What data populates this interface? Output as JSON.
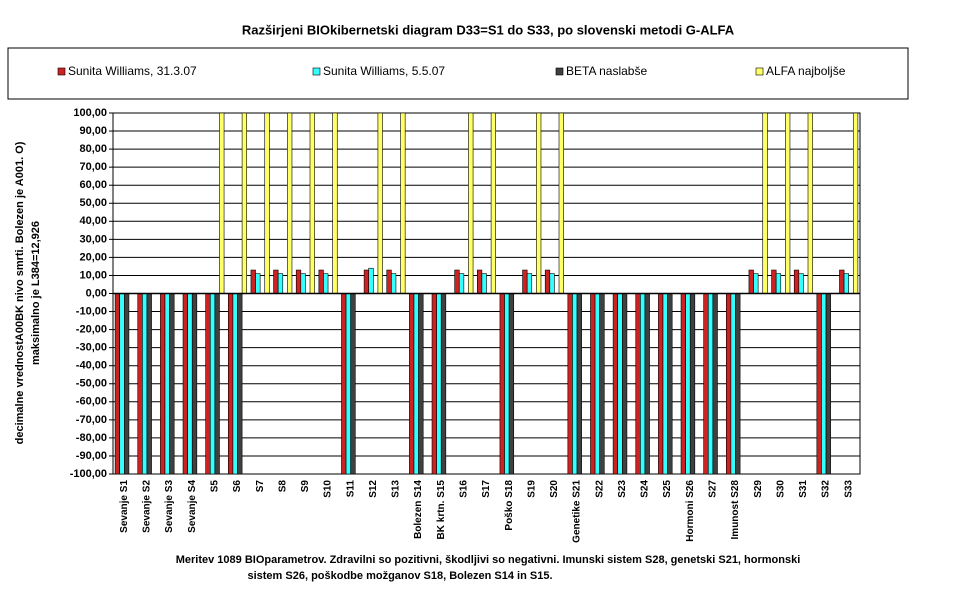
{
  "chart_data": {
    "type": "bar",
    "title": "Razširjeni BIOkibernetski diagram  D33=S1 do S33, po slovenski metodi G-ALFA",
    "y_label": [
      "decimalne vrednostA00BK nivo smrti. Bolezen je A001. O)",
      "maksimalno je L384=12,926"
    ],
    "caption": [
      "Meritev 1089 BIOparametrov. Zdravilni so pozitivni, škodljivi so negativni. Imunski sistem S28, genetski S21, hormonski",
      "sistem S26, poškodbe možganov S18, Bolezen S14 in S15."
    ],
    "categories": [
      "Sevanje S1",
      "Sevanje S2",
      "Sevanje S3",
      "Sevanje S4",
      "S5",
      "S6",
      "S7",
      "S8",
      "S9",
      "S10",
      "S11",
      "S12",
      "S13",
      "Bolezen S14",
      "BK krtn. S15",
      "S16",
      "S17",
      "Poško S18",
      "S19",
      "S20",
      "Genetike S21",
      "S22",
      "S23",
      "S24",
      "S25",
      "Hormoni S26",
      "S27",
      "Imunost S28",
      "S29",
      "S30",
      "S31",
      "S32",
      "S33"
    ],
    "series": [
      {
        "name": "Sunita Williams, 31.3.07",
        "color": "#cc2222",
        "values": [
          -100,
          -100,
          -100,
          -100,
          -100,
          -100,
          13,
          13,
          13,
          13,
          -100,
          13,
          13,
          -100,
          -100,
          13,
          13,
          -100,
          13,
          13,
          -100,
          -100,
          -100,
          -100,
          -100,
          -100,
          -100,
          -100,
          13,
          13,
          13,
          -100,
          13
        ]
      },
      {
        "name": "Sunita Williams, 5.5.07",
        "color": "#33ffff",
        "values": [
          -100,
          -100,
          -100,
          -100,
          -100,
          -100,
          11,
          11,
          11,
          11,
          -100,
          14,
          11,
          -100,
          -100,
          11,
          11,
          -100,
          11,
          11,
          -100,
          -100,
          -100,
          -100,
          -100,
          -100,
          -100,
          -100,
          11,
          11,
          11,
          -100,
          11
        ]
      },
      {
        "name": "BETA naslabše",
        "color": "#404040",
        "values": [
          -100,
          -100,
          -100,
          -100,
          -100,
          -100,
          0,
          0,
          0,
          0,
          -100,
          0,
          0,
          -100,
          -100,
          0,
          0,
          -100,
          0,
          0,
          -100,
          -100,
          -100,
          -100,
          -100,
          -100,
          -100,
          -100,
          0,
          0,
          0,
          -100,
          0
        ]
      },
      {
        "name": "ALFA najboljše",
        "color": "#ffff66",
        "values": [
          0,
          0,
          0,
          0,
          100,
          100,
          100,
          100,
          100,
          100,
          0,
          100,
          100,
          0,
          0,
          100,
          100,
          0,
          100,
          100,
          0,
          0,
          0,
          0,
          0,
          0,
          0,
          0,
          100,
          100,
          100,
          0,
          100
        ]
      }
    ],
    "ylim": [
      -100,
      100
    ],
    "yticks": [
      {
        "value": 100,
        "label": "100,00"
      },
      {
        "value": 90,
        "label": "90,00"
      },
      {
        "value": 80,
        "label": "80,00"
      },
      {
        "value": 70,
        "label": "70,00"
      },
      {
        "value": 60,
        "label": "60,00"
      },
      {
        "value": 50,
        "label": "50,00"
      },
      {
        "value": 40,
        "label": "40,00"
      },
      {
        "value": 30,
        "label": "30,00"
      },
      {
        "value": 20,
        "label": "20,00"
      },
      {
        "value": 10,
        "label": "10,00"
      },
      {
        "value": 0,
        "label": "0,00"
      },
      {
        "value": -10,
        "label": "-10,00"
      },
      {
        "value": -20,
        "label": "-20,00"
      },
      {
        "value": -30,
        "label": "-30,00"
      },
      {
        "value": -40,
        "label": "-40,00"
      },
      {
        "value": -50,
        "label": "-50,00"
      },
      {
        "value": -60,
        "label": "-60,00"
      },
      {
        "value": -70,
        "label": "-70,00"
      },
      {
        "value": -80,
        "label": "-80,00"
      },
      {
        "value": -90,
        "label": "-90,00"
      },
      {
        "value": -100,
        "label": "-100,00"
      }
    ],
    "grid": true
  }
}
